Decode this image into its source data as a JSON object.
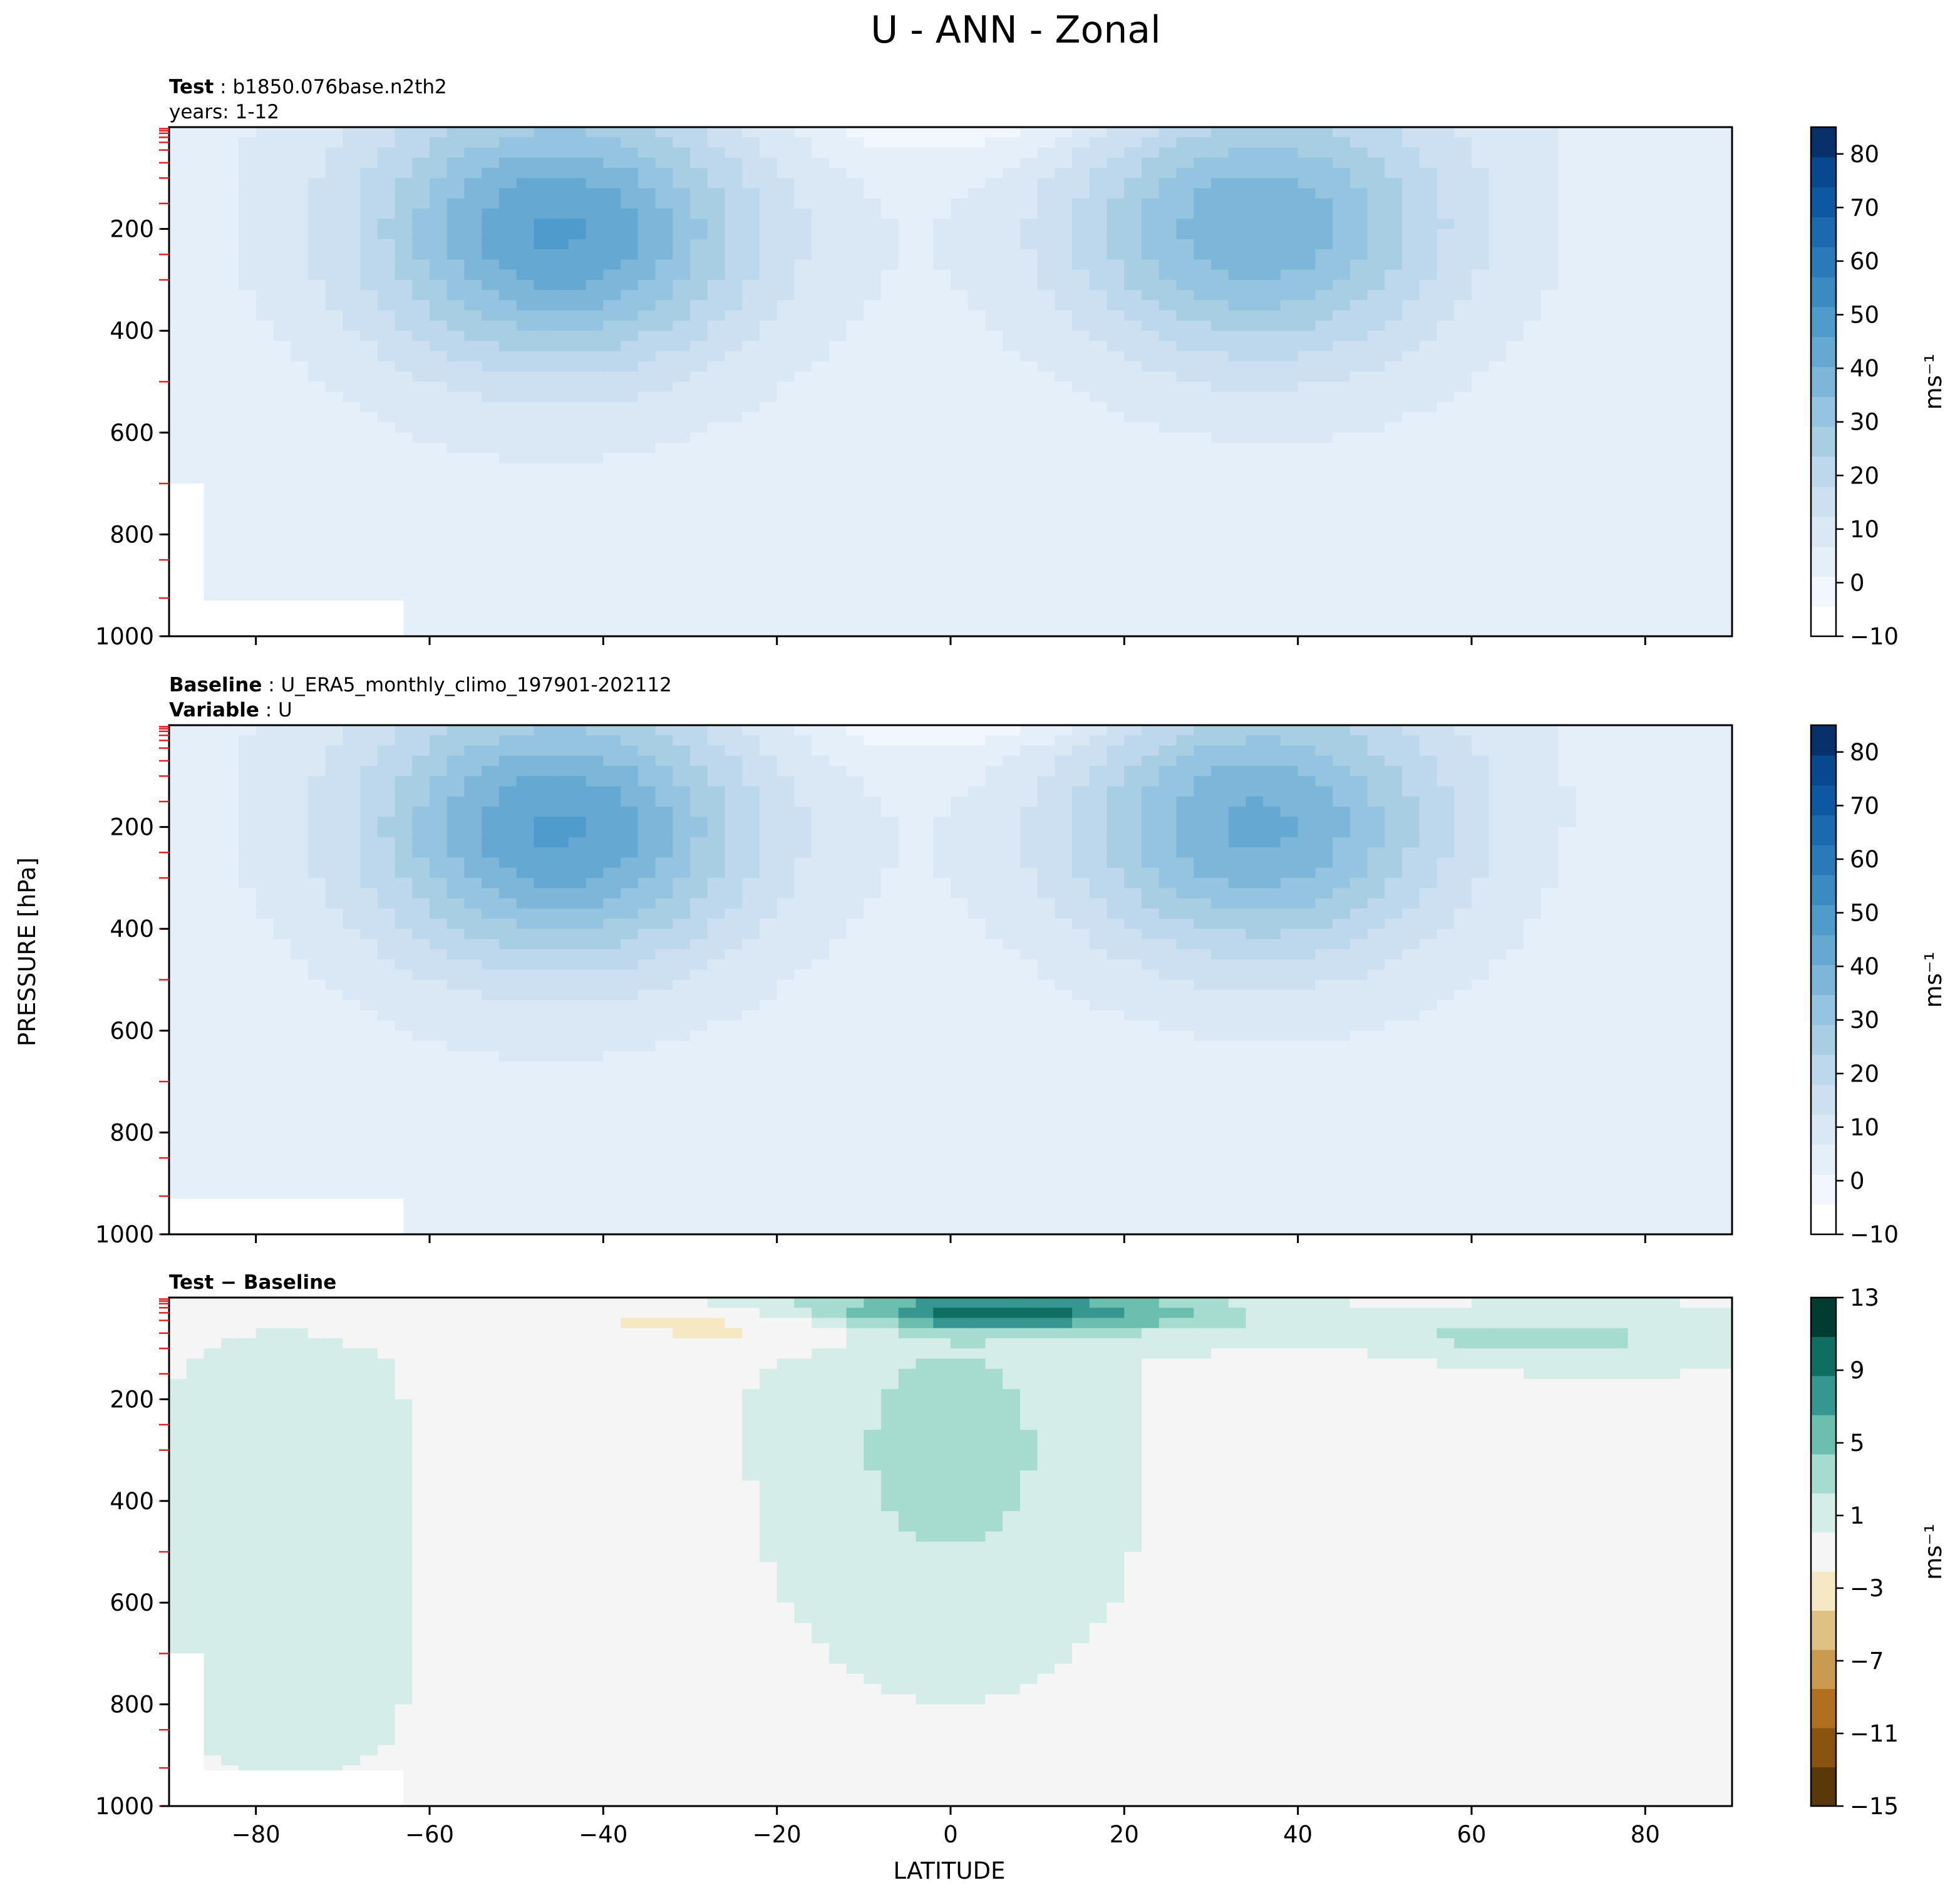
{
  "figure": {
    "title": "U - ANN - Zonal",
    "ylabel": "PRESSURE [hPa]",
    "xlabel": "LATITUDE"
  },
  "chart_data": [
    {
      "type": "heatmap",
      "panel": "test",
      "header": [
        {
          "bold": "Test",
          "text": "b1850.076base.n2th2"
        },
        {
          "bold": "",
          "text": "years: 1-12"
        }
      ],
      "xlim": [
        -90,
        90
      ],
      "ylim": [
        1000,
        0
      ],
      "xticks": [
        "−80",
        "−60",
        "−40",
        "−20",
        "0",
        "20",
        "40",
        "60",
        "80"
      ],
      "xtick_values": [
        -80,
        -60,
        -40,
        -20,
        0,
        20,
        40,
        60,
        80
      ],
      "yticks": [
        "200",
        "400",
        "600",
        "800",
        "1000"
      ],
      "ytick_values": [
        200,
        400,
        600,
        800,
        1000
      ],
      "colorbar": {
        "label": "ms⁻¹",
        "min": -10,
        "max": 85,
        "tick_values": [
          -10,
          0,
          10,
          20,
          30,
          40,
          50,
          60,
          70,
          80
        ],
        "ticks": [
          "−10",
          "0",
          "10",
          "20",
          "30",
          "40",
          "50",
          "60",
          "70",
          "80"
        ],
        "colors": [
          "#ffffff",
          "#f2f7fd",
          "#e5eff9",
          "#dae8f5",
          "#cde0f1",
          "#bdd7ec",
          "#a8cee4",
          "#94c4df",
          "#7cb7da",
          "#65a9d3",
          "#4f9bcb",
          "#3b8bc2",
          "#2a7ab9",
          "#1b69af",
          "#0d58a1",
          "#08488e",
          "#08306b"
        ]
      },
      "field": {
        "jets": [
          {
            "lat": -45,
            "p": 210,
            "peak": 40
          },
          {
            "lat": 35,
            "p": 200,
            "peak": 34
          }
        ]
      }
    },
    {
      "type": "heatmap",
      "panel": "baseline",
      "header": [
        {
          "bold": "Baseline",
          "text": "U_ERA5_monthly_climo_197901-202112"
        },
        {
          "bold": "Variable",
          "text": "U"
        }
      ],
      "xlim": [
        -90,
        90
      ],
      "ylim": [
        1000,
        0
      ],
      "xticks": [
        "−80",
        "−60",
        "−40",
        "−20",
        "0",
        "20",
        "40",
        "60",
        "80"
      ],
      "xtick_values": [
        -80,
        -60,
        -40,
        -20,
        0,
        20,
        40,
        60,
        80
      ],
      "yticks": [
        "200",
        "400",
        "600",
        "800",
        "1000"
      ],
      "ytick_values": [
        200,
        400,
        600,
        800,
        1000
      ],
      "colorbar": {
        "label": "ms⁻¹",
        "min": -10,
        "max": 85,
        "tick_values": [
          -10,
          0,
          10,
          20,
          30,
          40,
          50,
          60,
          70,
          80
        ],
        "ticks": [
          "−10",
          "0",
          "10",
          "20",
          "30",
          "40",
          "50",
          "60",
          "70",
          "80"
        ],
        "colors": [
          "#ffffff",
          "#f2f7fd",
          "#e5eff9",
          "#dae8f5",
          "#cde0f1",
          "#bdd7ec",
          "#a8cee4",
          "#94c4df",
          "#7cb7da",
          "#65a9d3",
          "#4f9bcb",
          "#3b8bc2",
          "#2a7ab9",
          "#1b69af",
          "#0d58a1",
          "#08488e",
          "#08306b"
        ]
      },
      "field": {
        "jets": [
          {
            "lat": -45,
            "p": 210,
            "peak": 40
          },
          {
            "lat": 35,
            "p": 200,
            "peak": 36
          }
        ]
      }
    },
    {
      "type": "heatmap",
      "panel": "difference",
      "header": [
        {
          "bold": "Test − Baseline",
          "text": ""
        }
      ],
      "xlim": [
        -90,
        90
      ],
      "ylim": [
        1000,
        0
      ],
      "xticks": [
        "−80",
        "−60",
        "−40",
        "−20",
        "0",
        "20",
        "40",
        "60",
        "80"
      ],
      "xtick_values": [
        -80,
        -60,
        -40,
        -20,
        0,
        20,
        40,
        60,
        80
      ],
      "yticks": [
        "200",
        "400",
        "600",
        "800",
        "1000"
      ],
      "ytick_values": [
        200,
        400,
        600,
        800,
        1000
      ],
      "colorbar": {
        "label": "ms⁻¹",
        "min": -15,
        "max": 13,
        "tick_values": [
          -15,
          -11,
          -7,
          -3,
          1,
          5,
          9,
          13
        ],
        "ticks": [
          "−15",
          "−11",
          "−7",
          "−3",
          "1",
          "5",
          "9",
          "13"
        ],
        "colors": [
          "#5a3808",
          "#8a5310",
          "#b0701f",
          "#c99a4f",
          "#dfc283",
          "#f6e8c3",
          "#f5f5f5",
          "#d5ede8",
          "#a6dbd0",
          "#6bbfae",
          "#35978f",
          "#0f6e62",
          "#003c30"
        ]
      },
      "field": {
        "features": [
          {
            "lat": 0,
            "p": 300,
            "amp": 4
          },
          {
            "lat": 5,
            "p": 30,
            "amp": 10
          },
          {
            "lat": -20,
            "p": 50,
            "amp": -4
          },
          {
            "lat": -48,
            "p": 500,
            "amp": -2
          },
          {
            "lat": 45,
            "p": 300,
            "amp": -2
          },
          {
            "lat": -75,
            "p": 500,
            "amp": 2
          },
          {
            "lat": 65,
            "p": 80,
            "amp": 3
          }
        ]
      }
    }
  ]
}
